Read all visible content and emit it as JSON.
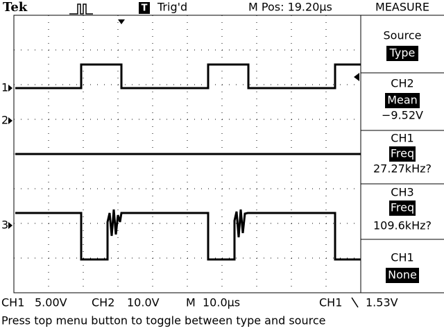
{
  "header": {
    "brand": "Tek",
    "trigger_icon": "T",
    "trigger_status": "Trig'd",
    "position": "M Pos: 19.20µs",
    "menu_title": "MEASURE"
  },
  "menu": [
    {
      "title": "Source",
      "value": "Type"
    },
    {
      "title": "CH2",
      "value": "Mean",
      "reading": "−9.52V"
    },
    {
      "title": "CH1",
      "value": "Freq",
      "reading": "27.27kHz?"
    },
    {
      "title": "CH3",
      "value": "Freq",
      "reading": "109.6kHz?"
    },
    {
      "title": "CH1",
      "value": "None"
    }
  ],
  "channel_markers": [
    "1",
    "2",
    "3"
  ],
  "status_bar": [
    {
      "label": "CH1",
      "value": "5.00V"
    },
    {
      "label": "CH2",
      "value": "10.0V"
    },
    {
      "label": "M",
      "value": "10.0µs"
    },
    {
      "label": "CH1",
      "value": "1.53V"
    }
  ],
  "message": "Press top menu button to toggle between type and source"
}
